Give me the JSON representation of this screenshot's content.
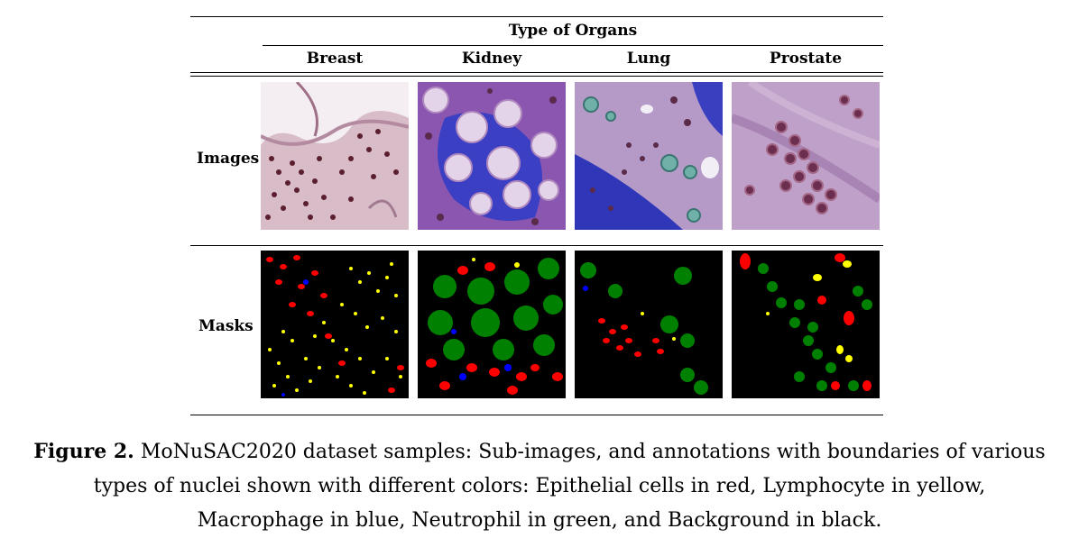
{
  "table": {
    "group_header": "Type of Organs",
    "columns": [
      "Breast",
      "Kidney",
      "Lung",
      "Prostate"
    ],
    "rows": [
      "Images",
      "Masks"
    ]
  },
  "caption": {
    "label": "Figure 2.",
    "line1": "MoNuSAC2020 dataset samples: Sub-images, and annotations with boundaries of various",
    "line2": "types of nuclei shown with different colors: Epithelial cells in red, Lymphocyte in yellow,",
    "line3": "Macrophage in blue, Neutrophil in green, and Background in black."
  },
  "mask_colors": {
    "epithelial": "#ff0000",
    "lymphocyte": "#ffff00",
    "macrophage": "#0000ff",
    "neutrophil": "#008000",
    "background": "#000000"
  }
}
